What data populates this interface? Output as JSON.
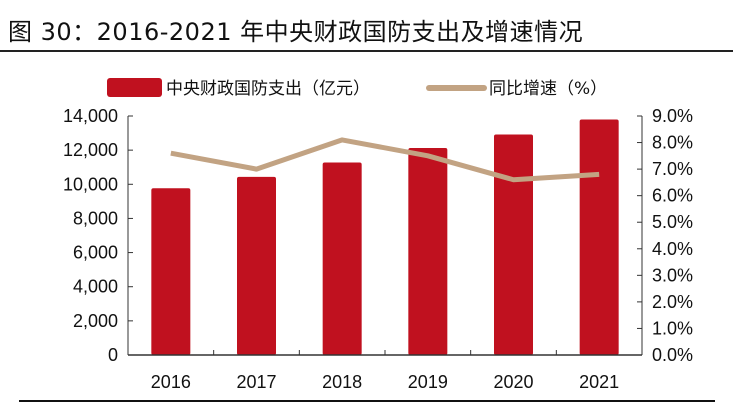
{
  "chart_data": {
    "type": "bar",
    "title": "图 30：2016-2021 年中央财政国防支出及增速情况",
    "categories": [
      "2016",
      "2017",
      "2018",
      "2019",
      "2020",
      "2021"
    ],
    "series": [
      {
        "name": "中央财政国防支出（亿元）",
        "type": "bar",
        "axis": "left",
        "color": "#C0111F",
        "values": [
          9766,
          10432,
          11279,
          12122,
          12919,
          13796
        ]
      },
      {
        "name": "同比增速（%）",
        "type": "line",
        "axis": "right",
        "color": "#C2A383",
        "values": [
          7.6,
          7.0,
          8.1,
          7.5,
          6.6,
          6.8
        ]
      }
    ],
    "ylim_left": [
      0,
      14000
    ],
    "ylim_right": [
      0,
      9.0
    ],
    "yticks_left": [
      "0",
      "2,000",
      "4,000",
      "6,000",
      "8,000",
      "10,000",
      "12,000",
      "14,000"
    ],
    "yticks_right": [
      "0.0%",
      "1.0%",
      "2.0%",
      "3.0%",
      "4.0%",
      "5.0%",
      "6.0%",
      "7.0%",
      "8.0%",
      "9.0%"
    ],
    "grid": false,
    "legend": "top"
  }
}
